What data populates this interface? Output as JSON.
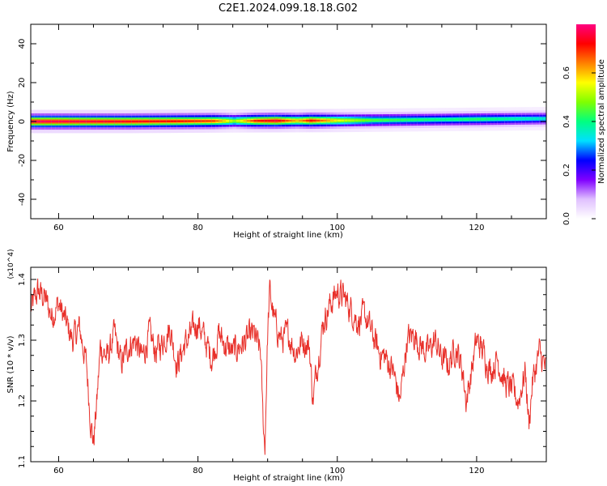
{
  "title": "C2E1.2024.099.18.18.G02",
  "chart_data": [
    {
      "type": "heatmap",
      "xlabel": "Height of straight line (km)",
      "ylabel": "Frequency (Hz)",
      "xlim": [
        56,
        130
      ],
      "ylim": [
        -50,
        50
      ],
      "x_ticks": [
        60,
        80,
        100,
        120
      ],
      "y_ticks": [
        -40,
        -20,
        0,
        20,
        40
      ],
      "colorbar": {
        "label": "Normalized spectral amplitude",
        "range": [
          0,
          0.8
        ],
        "ticks": [
          0.0,
          0.2,
          0.4,
          0.6
        ],
        "colormap": [
          "#ffffff",
          "#e0c0ff",
          "#8000ff",
          "#0000ff",
          "#00e0ff",
          "#00ff80",
          "#80ff00",
          "#ffff00",
          "#ff8000",
          "#ff0000",
          "#ff0080"
        ]
      },
      "ridge_center_hz": [
        {
          "x": 56,
          "f": 0
        },
        {
          "x": 70,
          "f": 0
        },
        {
          "x": 85,
          "f": 0.3
        },
        {
          "x": 100,
          "f": 0.5
        },
        {
          "x": 115,
          "f": 1
        },
        {
          "x": 130,
          "f": 1.5
        }
      ],
      "ridge_peak_amplitude": [
        {
          "x": 56,
          "a": 0.78
        },
        {
          "x": 66,
          "a": 0.75
        },
        {
          "x": 76,
          "a": 0.72
        },
        {
          "x": 82,
          "a": 0.68
        },
        {
          "x": 85,
          "a": 0.5
        },
        {
          "x": 88,
          "a": 0.7
        },
        {
          "x": 91,
          "a": 0.75
        },
        {
          "x": 94,
          "a": 0.6
        },
        {
          "x": 96,
          "a": 0.72
        },
        {
          "x": 100,
          "a": 0.55
        },
        {
          "x": 105,
          "a": 0.45
        },
        {
          "x": 110,
          "a": 0.42
        },
        {
          "x": 115,
          "a": 0.4
        },
        {
          "x": 120,
          "a": 0.42
        },
        {
          "x": 125,
          "a": 0.38
        },
        {
          "x": 130,
          "a": 0.35
        }
      ]
    },
    {
      "type": "line",
      "xlabel": "Height of straight line (km)",
      "ylabel": "SNR (10 * v/v)",
      "y_multiplier": "(x10^4)",
      "xlim": [
        56,
        130
      ],
      "ylim": [
        1.1,
        1.42
      ],
      "x_ticks": [
        60,
        80,
        100,
        120
      ],
      "y_ticks": [
        1.1,
        1.2,
        1.3,
        1.4
      ],
      "series": [
        {
          "color": "#e8302a",
          "x": [
            56,
            57,
            58,
            59,
            60,
            61,
            62,
            63,
            64,
            64.5,
            65,
            65.5,
            66,
            67,
            68,
            69,
            70,
            71,
            72,
            73,
            74,
            75,
            76,
            77,
            78,
            79,
            80,
            81,
            82,
            83,
            84,
            85,
            86,
            87,
            88,
            89,
            89.3,
            89.6,
            90,
            90.3,
            91,
            92,
            93,
            94,
            95,
            96,
            96.5,
            97,
            98,
            99,
            100,
            101,
            102,
            103,
            104,
            105,
            106,
            107,
            108,
            109,
            110,
            111,
            112,
            113,
            114,
            115,
            116,
            117,
            118,
            118.5,
            119,
            120,
            121,
            122,
            123,
            124,
            125,
            126,
            127,
            127.5,
            128,
            129,
            130
          ],
          "y": [
            1.35,
            1.38,
            1.37,
            1.34,
            1.36,
            1.33,
            1.3,
            1.32,
            1.26,
            1.18,
            1.13,
            1.2,
            1.29,
            1.27,
            1.31,
            1.26,
            1.29,
            1.3,
            1.27,
            1.31,
            1.28,
            1.3,
            1.32,
            1.26,
            1.29,
            1.31,
            1.33,
            1.3,
            1.27,
            1.31,
            1.29,
            1.28,
            1.29,
            1.3,
            1.31,
            1.28,
            1.18,
            1.12,
            1.31,
            1.38,
            1.33,
            1.3,
            1.31,
            1.28,
            1.3,
            1.29,
            1.2,
            1.25,
            1.33,
            1.36,
            1.38,
            1.37,
            1.35,
            1.33,
            1.34,
            1.31,
            1.28,
            1.27,
            1.25,
            1.2,
            1.3,
            1.31,
            1.29,
            1.28,
            1.3,
            1.27,
            1.26,
            1.29,
            1.25,
            1.2,
            1.23,
            1.3,
            1.28,
            1.25,
            1.27,
            1.23,
            1.22,
            1.2,
            1.25,
            1.16,
            1.23,
            1.28,
            1.25
          ]
        }
      ]
    }
  ]
}
